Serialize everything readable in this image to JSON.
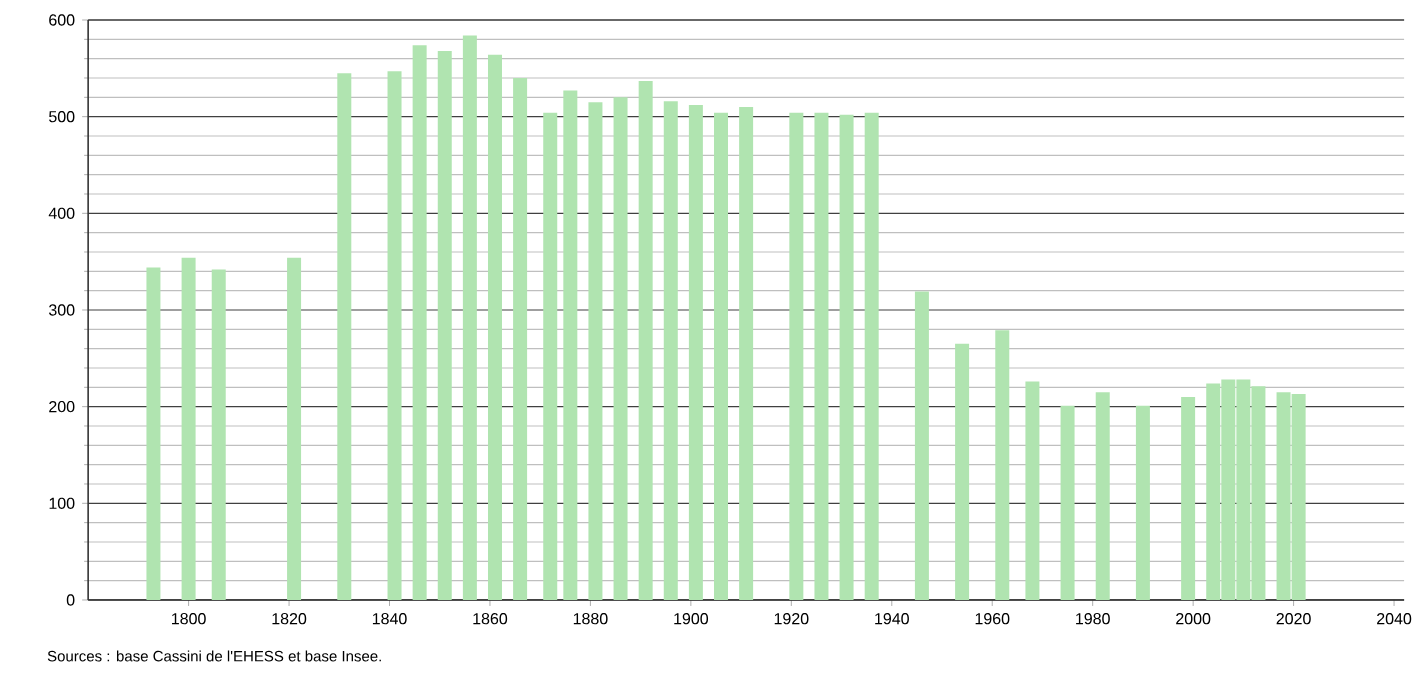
{
  "chart_data": {
    "type": "bar",
    "x": [
      1793,
      1800,
      1806,
      1821,
      1831,
      1841,
      1846,
      1851,
      1856,
      1861,
      1866,
      1872,
      1876,
      1881,
      1886,
      1891,
      1896,
      1901,
      1906,
      1911,
      1921,
      1926,
      1931,
      1936,
      1946,
      1954,
      1962,
      1968,
      1975,
      1982,
      1990,
      1999,
      2004,
      2007,
      2010,
      2013,
      2018,
      2021
    ],
    "values": [
      344,
      354,
      342,
      354,
      545,
      547,
      574,
      568,
      584,
      564,
      540,
      504,
      527,
      515,
      520,
      537,
      516,
      512,
      504,
      510,
      504,
      504,
      502,
      504,
      319,
      265,
      279,
      226,
      201,
      215,
      201,
      210,
      224,
      228,
      228,
      221,
      215,
      213
    ],
    "color": "#b0e4b0",
    "xlim": [
      1780,
      2042
    ],
    "xticks": [
      1800,
      1820,
      1840,
      1860,
      1880,
      1900,
      1920,
      1940,
      1960,
      1980,
      2000,
      2020,
      2040
    ],
    "ylim": [
      0,
      600
    ],
    "yticks": [
      0,
      100,
      200,
      300,
      400,
      500,
      600
    ],
    "grid": "y",
    "annotations": [
      "Sources : base Cassini de l'EHESS et base Insee."
    ]
  }
}
